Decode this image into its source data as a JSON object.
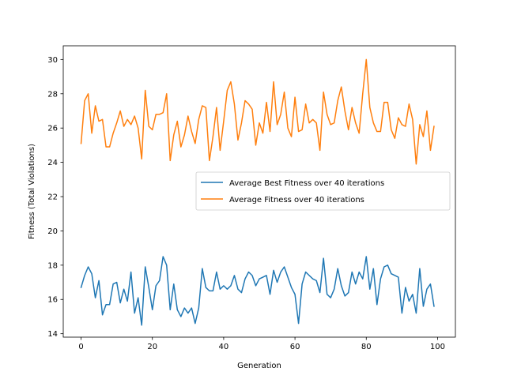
{
  "chart_data": {
    "type": "line",
    "title": "",
    "xlabel": "Generation",
    "ylabel": "Fitness (Total Violations)",
    "xlim": [
      -5,
      105
    ],
    "ylim": [
      13.8,
      30.8
    ],
    "xticks": [
      0,
      20,
      40,
      60,
      80,
      100
    ],
    "yticks": [
      14,
      16,
      18,
      20,
      22,
      24,
      26,
      28,
      30
    ],
    "grid": false,
    "legend_position": "center-right",
    "series": [
      {
        "name": "Average Best Fitness over 40 iterations",
        "color": "#1f77b4",
        "x": [
          0,
          1,
          2,
          3,
          4,
          5,
          6,
          7,
          8,
          9,
          10,
          11,
          12,
          13,
          14,
          15,
          16,
          17,
          18,
          19,
          20,
          21,
          22,
          23,
          24,
          25,
          26,
          27,
          28,
          29,
          30,
          31,
          32,
          33,
          34,
          35,
          36,
          37,
          38,
          39,
          40,
          41,
          42,
          43,
          44,
          45,
          46,
          47,
          48,
          49,
          50,
          51,
          52,
          53,
          54,
          55,
          56,
          57,
          58,
          59,
          60,
          61,
          62,
          63,
          64,
          65,
          66,
          67,
          68,
          69,
          70,
          71,
          72,
          73,
          74,
          75,
          76,
          77,
          78,
          79,
          80,
          81,
          82,
          83,
          84,
          85,
          86,
          87,
          88,
          89,
          90,
          91,
          92,
          93,
          94,
          95,
          96,
          97,
          98,
          99
        ],
        "y": [
          16.7,
          17.4,
          17.9,
          17.5,
          16.1,
          17.1,
          15.1,
          15.7,
          15.7,
          16.9,
          17.0,
          15.8,
          16.6,
          15.9,
          17.6,
          15.2,
          16.1,
          14.5,
          17.9,
          16.7,
          15.4,
          16.8,
          17.1,
          18.5,
          18.0,
          15.4,
          16.9,
          15.4,
          15.0,
          15.5,
          15.2,
          15.5,
          14.6,
          15.5,
          17.8,
          16.7,
          16.5,
          16.5,
          17.6,
          16.6,
          16.8,
          16.6,
          16.8,
          17.4,
          16.6,
          16.4,
          17.2,
          17.6,
          17.4,
          16.8,
          17.2,
          17.3,
          17.4,
          16.3,
          17.7,
          17.0,
          17.6,
          17.9,
          17.3,
          16.7,
          16.3,
          14.6,
          16.9,
          17.6,
          17.4,
          17.2,
          17.1,
          16.4,
          18.4,
          16.3,
          16.1,
          16.6,
          17.8,
          16.8,
          16.2,
          16.4,
          17.6,
          16.9,
          17.6,
          17.2,
          18.5,
          16.6,
          17.8,
          15.7,
          17.2,
          17.9,
          18.0,
          17.5,
          17.4,
          17.3,
          15.2,
          16.7,
          15.9,
          16.3,
          15.2,
          17.8,
          15.6,
          16.6,
          16.9,
          15.6
        ]
      },
      {
        "name": "Average Fitness over 40 iterations",
        "color": "#ff7f0e",
        "x": [
          0,
          1,
          2,
          3,
          4,
          5,
          6,
          7,
          8,
          9,
          10,
          11,
          12,
          13,
          14,
          15,
          16,
          17,
          18,
          19,
          20,
          21,
          22,
          23,
          24,
          25,
          26,
          27,
          28,
          29,
          30,
          31,
          32,
          33,
          34,
          35,
          36,
          37,
          38,
          39,
          40,
          41,
          42,
          43,
          44,
          45,
          46,
          47,
          48,
          49,
          50,
          51,
          52,
          53,
          54,
          55,
          56,
          57,
          58,
          59,
          60,
          61,
          62,
          63,
          64,
          65,
          66,
          67,
          68,
          69,
          70,
          71,
          72,
          73,
          74,
          75,
          76,
          77,
          78,
          79,
          80,
          81,
          82,
          83,
          84,
          85,
          86,
          87,
          88,
          89,
          90,
          91,
          92,
          93,
          94,
          95,
          96,
          97,
          98,
          99
        ],
        "y": [
          25.1,
          27.6,
          28.0,
          25.7,
          27.3,
          26.4,
          26.5,
          24.9,
          24.9,
          25.7,
          26.3,
          27.0,
          26.1,
          26.5,
          26.2,
          26.7,
          26.0,
          24.2,
          28.2,
          26.1,
          25.9,
          26.8,
          26.8,
          26.9,
          28.0,
          24.1,
          25.6,
          26.4,
          24.9,
          25.6,
          26.7,
          25.8,
          25.1,
          26.5,
          27.3,
          27.2,
          24.1,
          25.5,
          27.2,
          24.7,
          26.4,
          28.2,
          28.7,
          27.4,
          25.3,
          26.3,
          27.6,
          27.4,
          27.1,
          25.0,
          26.3,
          25.7,
          27.5,
          25.8,
          28.7,
          26.2,
          26.8,
          28.1,
          26.0,
          25.5,
          27.8,
          25.8,
          25.9,
          27.4,
          26.3,
          26.5,
          26.3,
          24.7,
          28.1,
          26.8,
          26.2,
          26.3,
          27.6,
          28.4,
          27.0,
          25.9,
          27.2,
          26.3,
          25.7,
          28.0,
          30.0,
          27.2,
          26.3,
          25.8,
          25.8,
          27.5,
          27.5,
          25.9,
          25.4,
          26.6,
          26.2,
          26.1,
          27.4,
          26.5,
          23.9,
          26.2,
          25.5,
          27.0,
          24.7,
          26.1
        ]
      }
    ]
  }
}
